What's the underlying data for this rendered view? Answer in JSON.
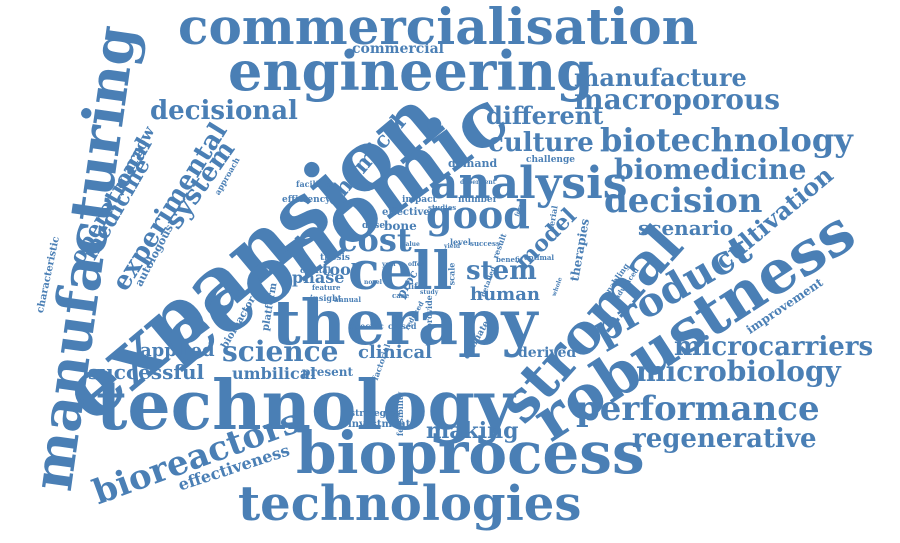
{
  "cloud": {
    "color": "#4a7fb5",
    "words": [
      "commercialisation",
      "engineering",
      "commercial",
      "manufacture",
      "macroporous",
      "decisional",
      "different",
      "culture",
      "biotechnology",
      "chemical",
      "biomedicine",
      "analysis",
      "good",
      "decision",
      "challenge",
      "demand",
      "scenario",
      "cultivation",
      "cost",
      "model",
      "cell",
      "stem",
      "human",
      "therapy",
      "robustness",
      "product",
      "stromal",
      "expansion",
      "economic",
      "manufacturing",
      "operational",
      "experimental",
      "medicine",
      "marrow",
      "system",
      "approach",
      "facilities",
      "efficiency",
      "autologous",
      "characteristic",
      "thesis",
      "tool",
      "phase",
      "capital",
      "insight",
      "bone",
      "dose",
      "effective",
      "impact",
      "studies",
      "number",
      "level",
      "success",
      "optimal",
      "scale",
      "therapies",
      "enabling",
      "advanced",
      "improvement",
      "microcarriers",
      "microbiology",
      "performance",
      "regenerative",
      "applied",
      "science",
      "clinical",
      "successful",
      "umbilical",
      "present",
      "platform",
      "bioreactor",
      "specific",
      "closed",
      "factorial",
      "derived",
      "technology",
      "bioprocess",
      "bioreactors",
      "strategies",
      "investment",
      "feasibility",
      "making",
      "effectiveness",
      "technologies",
      "life",
      "case",
      "feature",
      "annual",
      "novel",
      "evaluate",
      "provide",
      "detailed",
      "benefit",
      "result",
      "serial",
      "year",
      "proc",
      "reduced",
      "offer",
      "value",
      "study",
      "form",
      "dependent",
      "yield",
      "whole"
    ]
  }
}
